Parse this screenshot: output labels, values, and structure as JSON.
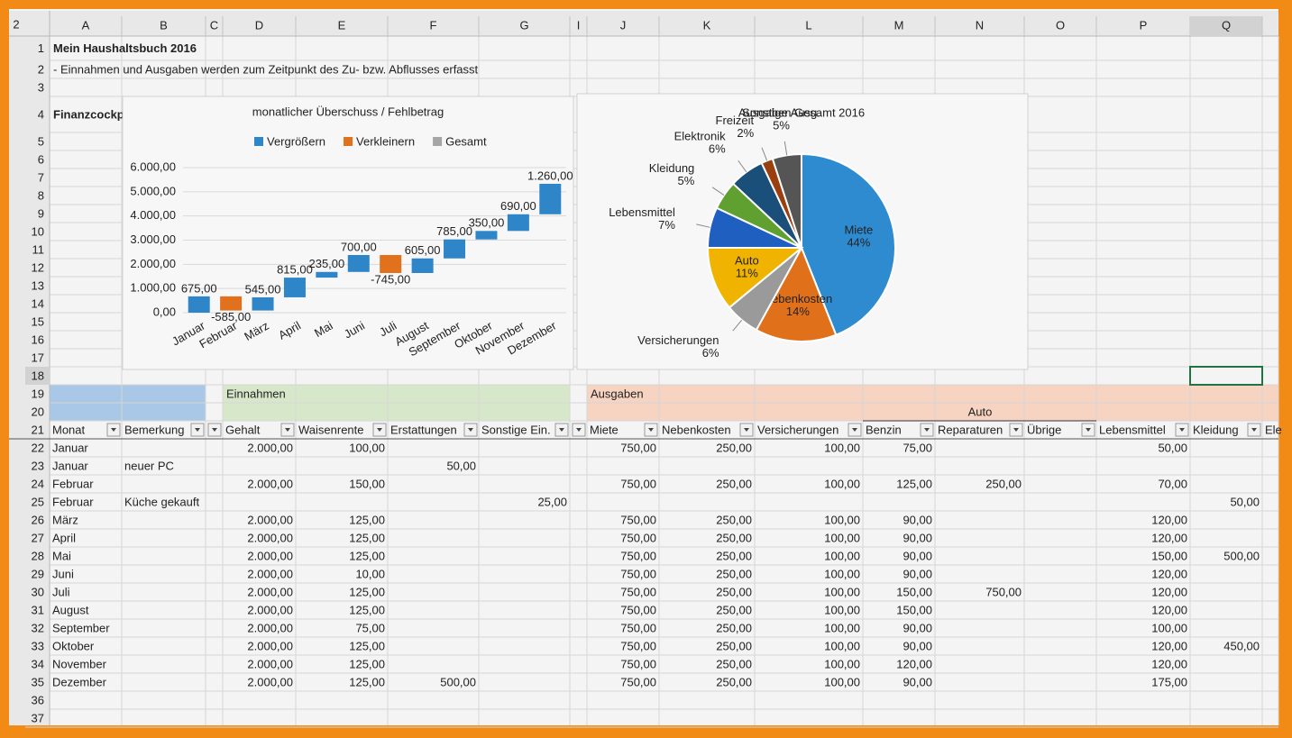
{
  "sheet": {
    "outline_level": "2",
    "columns": [
      "A",
      "B",
      "C",
      "D",
      "E",
      "F",
      "G",
      "I",
      "J",
      "K",
      "L",
      "M",
      "N",
      "O",
      "P",
      "Q"
    ],
    "row_numbers": [
      1,
      2,
      3,
      4,
      5,
      6,
      7,
      8,
      9,
      10,
      11,
      12,
      13,
      14,
      15,
      16,
      17,
      18,
      19,
      20,
      21,
      22,
      23,
      24,
      25,
      26,
      27,
      28,
      29,
      30,
      31,
      32,
      33,
      34,
      35,
      36,
      37
    ],
    "title": "Mein Haushaltsbuch 2016",
    "subtitle": "- Einnahmen und Ausgaben werden zum Zeitpunkt des Zu- bzw. Abflusses erfasst",
    "section": "Finanzcockpi",
    "groups": {
      "income": "Einnahmen",
      "expenses": "Ausgaben",
      "auto": "Auto"
    },
    "headers": [
      "Monat",
      "Bemerkung",
      "Gehalt",
      "Waisenrente",
      "Erstattungen",
      "Sonstige Ein.",
      "Miete",
      "Nebenkosten",
      "Versicherungen",
      "Benzin",
      "Reparaturen",
      "Übrige",
      "Lebensmittel",
      "Kleidung",
      "Ele"
    ],
    "rows": [
      [
        "Januar",
        null,
        "2.000,00",
        "100,00",
        null,
        null,
        "750,00",
        "250,00",
        "100,00",
        "75,00",
        null,
        null,
        "50,00",
        null,
        null
      ],
      [
        "Januar",
        "neuer PC",
        null,
        null,
        "50,00",
        null,
        null,
        null,
        null,
        null,
        null,
        null,
        null,
        null,
        null
      ],
      [
        "Februar",
        null,
        "2.000,00",
        "150,00",
        null,
        null,
        "750,00",
        "250,00",
        "100,00",
        "125,00",
        "250,00",
        null,
        "70,00",
        null,
        null
      ],
      [
        "Februar",
        "Küche gekauft",
        null,
        null,
        null,
        "25,00",
        null,
        null,
        null,
        null,
        null,
        null,
        null,
        "50,00",
        null
      ],
      [
        "März",
        null,
        "2.000,00",
        "125,00",
        null,
        null,
        "750,00",
        "250,00",
        "100,00",
        "90,00",
        null,
        null,
        "120,00",
        null,
        null
      ],
      [
        "April",
        null,
        "2.000,00",
        "125,00",
        null,
        null,
        "750,00",
        "250,00",
        "100,00",
        "90,00",
        null,
        null,
        "120,00",
        null,
        null
      ],
      [
        "Mai",
        null,
        "2.000,00",
        "125,00",
        null,
        null,
        "750,00",
        "250,00",
        "100,00",
        "90,00",
        null,
        null,
        "150,00",
        "500,00",
        null
      ],
      [
        "Juni",
        null,
        "2.000,00",
        "10,00",
        null,
        null,
        "750,00",
        "250,00",
        "100,00",
        "90,00",
        null,
        null,
        "120,00",
        null,
        null
      ],
      [
        "Juli",
        null,
        "2.000,00",
        "125,00",
        null,
        null,
        "750,00",
        "250,00",
        "100,00",
        "150,00",
        "750,00",
        null,
        "120,00",
        null,
        null
      ],
      [
        "August",
        null,
        "2.000,00",
        "125,00",
        null,
        null,
        "750,00",
        "250,00",
        "100,00",
        "150,00",
        null,
        null,
        "120,00",
        null,
        null
      ],
      [
        "September",
        null,
        "2.000,00",
        "75,00",
        null,
        null,
        "750,00",
        "250,00",
        "100,00",
        "90,00",
        null,
        null,
        "100,00",
        null,
        null
      ],
      [
        "Oktober",
        null,
        "2.000,00",
        "125,00",
        null,
        null,
        "750,00",
        "250,00",
        "100,00",
        "90,00",
        null,
        null,
        "120,00",
        "450,00",
        null
      ],
      [
        "November",
        null,
        "2.000,00",
        "125,00",
        null,
        null,
        "750,00",
        "250,00",
        "100,00",
        "120,00",
        null,
        null,
        "120,00",
        null,
        null
      ],
      [
        "Dezember",
        null,
        "2.000,00",
        "125,00",
        "500,00",
        null,
        "750,00",
        "250,00",
        "100,00",
        "90,00",
        null,
        null,
        "175,00",
        null,
        null
      ]
    ]
  },
  "chart_data": [
    {
      "type": "waterfall",
      "title": "monatlicher Überschuss / Fehlbetrag",
      "categories": [
        "Januar",
        "Februar",
        "März",
        "April",
        "Mai",
        "Juni",
        "Juli",
        "August",
        "September",
        "Oktober",
        "November",
        "Dezember"
      ],
      "values": [
        675,
        -585,
        545,
        815,
        235,
        700,
        -745,
        605,
        785,
        350,
        690,
        1260
      ],
      "value_labels": [
        "675,00",
        "-585,00",
        "545,00",
        "815,00",
        "235,00",
        "700,00",
        "-745,00",
        "605,00",
        "785,00",
        "350,00",
        "690,00",
        "1.260,00"
      ],
      "series": [
        {
          "name": "Vergrößern",
          "color": "#2e86c8"
        },
        {
          "name": "Verkleinern",
          "color": "#e2711d"
        },
        {
          "name": "Gesamt",
          "color": "#a5a5a5"
        }
      ],
      "ylim": [
        0,
        6000
      ],
      "yticks": [
        {
          "value": 0,
          "label": "0,00"
        },
        {
          "value": 1000,
          "label": "1.000,00"
        },
        {
          "value": 2000,
          "label": "2.000,00"
        },
        {
          "value": 3000,
          "label": "3.000,00"
        },
        {
          "value": 4000,
          "label": "4.000,00"
        },
        {
          "value": 5000,
          "label": "5.000,00"
        },
        {
          "value": 6000,
          "label": "6.000,00"
        }
      ],
      "grid": true,
      "legend": "top"
    },
    {
      "type": "pie",
      "title": "Ausgaben Gesamt 2016",
      "categories": [
        "Miete",
        "Nebenkosten",
        "Versicherungen",
        "Auto",
        "Lebensmittel",
        "Kleidung",
        "Elektronik",
        "Freizeit",
        "Sonstige Ausg."
      ],
      "values": [
        44,
        14,
        6,
        11,
        7,
        5,
        6,
        2,
        5
      ],
      "value_labels": [
        "44%",
        "14%",
        "6%",
        "11%",
        "7%",
        "5%",
        "6%",
        "2%",
        "5%"
      ],
      "colors": [
        "#2e8bd0",
        "#e0701a",
        "#9a9a9a",
        "#f0b400",
        "#1f5fbf",
        "#5fa030",
        "#1a4f7a",
        "#9a4010",
        "#555555"
      ]
    }
  ]
}
